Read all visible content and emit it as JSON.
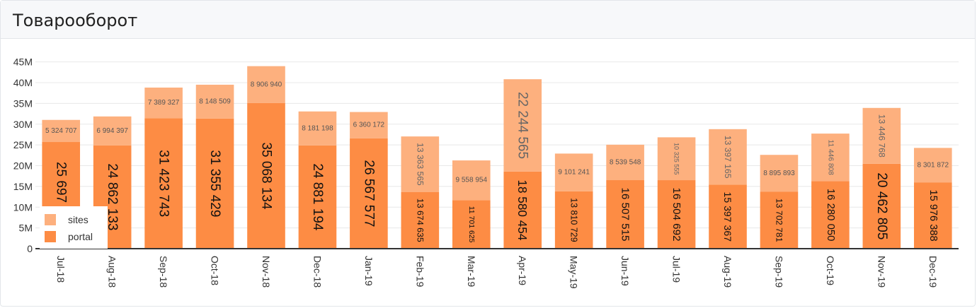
{
  "panel": {
    "title": "Товарооборот"
  },
  "chart_data": {
    "type": "bar",
    "stacked": true,
    "categories": [
      "Jul-18",
      "Aug-18",
      "Sep-18",
      "Oct-18",
      "Nov-18",
      "Dec-18",
      "Jan-19",
      "Feb-19",
      "Mar-19",
      "Apr-19",
      "May-19",
      "Jun-19",
      "Jul-19",
      "Aug-19",
      "Sep-19",
      "Oct-19",
      "Nov-19",
      "Dec-19"
    ],
    "series": [
      {
        "name": "portal",
        "color": "#fd8c44",
        "values": [
          25697830,
          24862133,
          31423743,
          31355429,
          35068134,
          24881194,
          26567577,
          13674635,
          11701625,
          18580454,
          13810729,
          16507515,
          16504692,
          15397367,
          13702781,
          16280050,
          20462805,
          15976388
        ],
        "labels": [
          "25 697 830",
          "24 862 133",
          "31 423 743",
          "31 355 429",
          "35 068 134",
          "24 881 194",
          "26 567 577",
          "13 674 635",
          "11 701 625",
          "18 580 454",
          "13 810 729",
          "16 507 515",
          "16 504 692",
          "15 397 367",
          "13 702 781",
          "16 280 050",
          "20 462 805",
          "15 976 388"
        ]
      },
      {
        "name": "sites",
        "color": "#fdb07e",
        "values": [
          5324707,
          6994397,
          7389327,
          8148509,
          8906940,
          8181198,
          6360172,
          13363565,
          9558954,
          22244565,
          9101241,
          8539548,
          10325555,
          13397165,
          8895893,
          11446808,
          13446768,
          8301872
        ],
        "labels": [
          "5 324 707",
          "6 994 397",
          "7 389 327",
          "8 148 509",
          "8 906 940",
          "8 181 198",
          "6 360 172",
          "13 363 565",
          "9 558 954",
          "22 244 565",
          "9 101 241",
          "8 539 548",
          "10 325 555",
          "13 397 165",
          "8 895 893",
          "11 446 808",
          "13 446 768",
          "8 301 872"
        ]
      }
    ],
    "yticks": [
      "0",
      "5M",
      "10M",
      "15M",
      "20M",
      "25M",
      "30M",
      "35M",
      "40M",
      "45M"
    ],
    "ylim": [
      0,
      48000000
    ],
    "grid": true,
    "legend": {
      "position": "bottom-left",
      "order": [
        "sites",
        "portal"
      ]
    },
    "title": "",
    "xlabel": "",
    "ylabel": ""
  }
}
